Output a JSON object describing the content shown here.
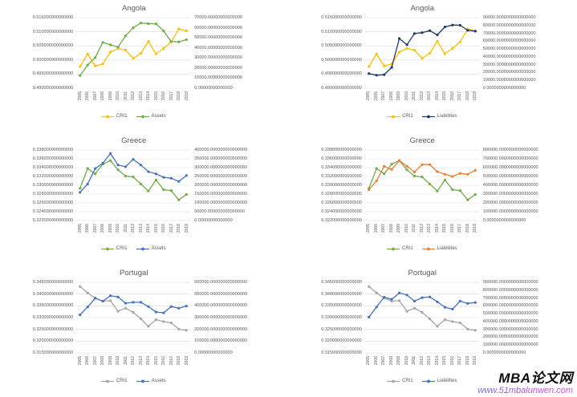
{
  "watermark": {
    "brand": "MBA论文网",
    "url": "www.51mbalunwen.com"
  },
  "colors": {
    "gold": "#FFC000",
    "green": "#70AD47",
    "navy": "#203864",
    "blue": "#4472C4",
    "orange": "#ED7D31",
    "gray": "#A5A5A5",
    "grid": "#D9D9D9",
    "text": "#595959",
    "watermark_brand": "#0D0D0D",
    "watermark_url_start": "#6F6FD8",
    "watermark_url_end": "#E04FC8"
  },
  "years": [
    "2005",
    "2006",
    "2007",
    "2008",
    "2009",
    "2010",
    "2011",
    "2012",
    "2013",
    "2014",
    "2015",
    "2016",
    "2017",
    "2018",
    "2019"
  ],
  "chart_data": [
    {
      "type": "line",
      "title": "Angola",
      "grid": "horizontal",
      "legend_position": "bottom",
      "x": [
        "2005",
        "2006",
        "2007",
        "2008",
        "2009",
        "2010",
        "2011",
        "2012",
        "2013",
        "2014",
        "2015",
        "2016",
        "2017",
        "2018",
        "2019"
      ],
      "left_axis": {
        "min": 0.49,
        "max": 0.515,
        "labels": [
          "0.515000000000000",
          "0.510000000000000",
          "0.505000000000000",
          "0.500000000000000",
          "0.495000000000000",
          "0.490000000000000"
        ]
      },
      "right_axis": {
        "min": 0,
        "max": 70000,
        "labels": [
          "70000.00000000000000",
          "60000.00000000000000",
          "50000.00000000000000",
          "40000.00000000000000",
          "30000.00000000000000",
          "20000.00000000000000",
          "10000.00000000000000",
          "0.00000000000000"
        ]
      },
      "series": [
        {
          "name": "CRI1",
          "color": "#FFC000",
          "axis": "left",
          "values": [
            0.4977,
            0.5021,
            0.4979,
            0.4986,
            0.5028,
            0.5041,
            0.5035,
            0.5006,
            0.5024,
            0.5066,
            0.5022,
            0.5041,
            0.5064,
            0.511,
            0.5103
          ]
        },
        {
          "name": "Assets",
          "color": "#70AD47",
          "axis": "right",
          "values": [
            12500,
            23000,
            30500,
            45500,
            43000,
            40800,
            52000,
            60000,
            64700,
            64000,
            63900,
            56800,
            46300,
            46000,
            48200
          ]
        }
      ]
    },
    {
      "type": "line",
      "title": "Angola",
      "grid": "horizontal",
      "legend_position": "bottom",
      "x": [
        "2005",
        "2006",
        "2007",
        "2008",
        "2009",
        "2010",
        "2011",
        "2012",
        "2013",
        "2014",
        "2015",
        "2016",
        "2017",
        "2018",
        "2019"
      ],
      "left_axis": {
        "min": 0.49,
        "max": 0.515,
        "labels": [
          "0.515000000000000",
          "0.510000000000000",
          "0.505000000000000",
          "0.500000000000000",
          "0.495000000000000",
          "0.490000000000000"
        ]
      },
      "right_axis": {
        "min": 0,
        "max": 90000,
        "labels": [
          "90000.0000000000000000",
          "80000.0000000000000000",
          "70000.0000000000000000",
          "60000.0000000000000000",
          "50000.0000000000000000",
          "40000.0000000000000000",
          "30000.0000000000000000",
          "20000.0000000000000000",
          "10000.0000000000000000",
          "0.0000000000000000"
        ]
      },
      "series": [
        {
          "name": "CRI1",
          "color": "#FFC000",
          "axis": "left",
          "values": [
            0.4977,
            0.5021,
            0.4979,
            0.4986,
            0.5028,
            0.5041,
            0.5035,
            0.5006,
            0.5024,
            0.5066,
            0.5022,
            0.5041,
            0.5064,
            0.511,
            0.5103
          ]
        },
        {
          "name": "Liabilities",
          "color": "#203864",
          "axis": "right",
          "values": [
            18700,
            16600,
            17300,
            26600,
            63400,
            55400,
            69800,
            70900,
            73400,
            68000,
            78100,
            80600,
            80300,
            73800,
            72700
          ]
        }
      ]
    },
    {
      "type": "line",
      "title": "Greece",
      "grid": "horizontal",
      "legend_position": "bottom",
      "x": [
        "2005",
        "2006",
        "2007",
        "2008",
        "2009",
        "2010",
        "2011",
        "2012",
        "2013",
        "2014",
        "2015",
        "2016",
        "2017",
        "2018",
        "2019"
      ],
      "left_axis": {
        "min": 0.322,
        "max": 0.338,
        "labels": [
          "0.338000000000000",
          "0.336000000000000",
          "0.334000000000000",
          "0.332000000000000",
          "0.330000000000000",
          "0.328000000000000",
          "0.326000000000000",
          "0.324000000000000",
          "0.322000000000000"
        ]
      },
      "right_axis": {
        "min": 0,
        "max": 400000,
        "labels": [
          "400000.000000000000000",
          "350000.000000000000000",
          "300000.000000000000000",
          "250000.000000000000000",
          "200000.000000000000000",
          "150000.000000000000000",
          "100000.000000000000000",
          "50000.000000000000000",
          "0.00000000000000"
        ]
      },
      "series": [
        {
          "name": "CRI1",
          "color": "#70AD47",
          "axis": "left",
          "values": [
            0.3293,
            0.3338,
            0.3326,
            0.3348,
            0.3356,
            0.3335,
            0.3321,
            0.3319,
            0.3303,
            0.3287,
            0.3312,
            0.329,
            0.3288,
            0.3267,
            0.3279
          ]
        },
        {
          "name": "Assets",
          "color": "#4472C4",
          "axis": "right",
          "values": [
            160000,
            207000,
            295000,
            325000,
            380000,
            315000,
            305000,
            347000,
            315000,
            277000,
            265000,
            245000,
            240000,
            222000,
            255000
          ]
        }
      ]
    },
    {
      "type": "line",
      "title": "Greece",
      "grid": "horizontal",
      "legend_position": "bottom",
      "x": [
        "2005",
        "2006",
        "2007",
        "2008",
        "2009",
        "2010",
        "2011",
        "2012",
        "2013",
        "2014",
        "2015",
        "2016",
        "2017",
        "2018",
        "2019"
      ],
      "left_axis": {
        "min": 0.322,
        "max": 0.338,
        "labels": [
          "0.338000000000000",
          "0.336000000000000",
          "0.334000000000000",
          "0.332000000000000",
          "0.330000000000000",
          "0.328000000000000",
          "0.326000000000000",
          "0.324000000000000",
          "0.322000000000000"
        ]
      },
      "right_axis": {
        "min": 0,
        "max": 800000,
        "labels": [
          "800000.0000000000000000",
          "700000.0000000000000000",
          "600000.0000000000000000",
          "500000.0000000000000000",
          "400000.0000000000000000",
          "300000.0000000000000000",
          "200000.0000000000000000",
          "100000.0000000000000000",
          "0.0000000000000000"
        ]
      },
      "series": [
        {
          "name": "CRI1",
          "color": "#70AD47",
          "axis": "left",
          "values": [
            0.3293,
            0.3338,
            0.3326,
            0.3348,
            0.3356,
            0.3335,
            0.3321,
            0.3319,
            0.3303,
            0.3287,
            0.3312,
            0.329,
            0.3288,
            0.3267,
            0.3279
          ]
        },
        {
          "name": "Liabilities",
          "color": "#ED7D31",
          "axis": "right",
          "values": [
            350000,
            450000,
            615000,
            580000,
            680000,
            615000,
            550000,
            635000,
            635000,
            555000,
            525000,
            500000,
            535000,
            525000,
            570000
          ]
        }
      ]
    },
    {
      "type": "line",
      "title": "Portugal",
      "grid": "horizontal",
      "legend_position": "bottom",
      "x": [
        "2005",
        "2006",
        "2007",
        "2008",
        "2009",
        "2010",
        "2011",
        "2012",
        "2013",
        "2014",
        "2015",
        "2016",
        "2017",
        "2018",
        "2019"
      ],
      "left_axis": {
        "min": 0.315,
        "max": 0.345,
        "labels": [
          "0.345000000000000",
          "0.340000000000000",
          "0.335000000000000",
          "0.330000000000000",
          "0.325000000000000",
          "0.320000000000000",
          "0.315000000000000"
        ]
      },
      "right_axis": {
        "min": 0,
        "max": 600000,
        "labels": [
          "600000.000000000000000",
          "500000.000000000000000",
          "400000.000000000000000",
          "300000.000000000000000",
          "200000.000000000000000",
          "100000.000000000000000",
          "0.00000000000000"
        ]
      },
      "series": [
        {
          "name": "CRI1",
          "color": "#A5A5A5",
          "axis": "left",
          "values": [
            0.3432,
            0.3405,
            0.3382,
            0.337,
            0.3372,
            0.3327,
            0.334,
            0.3322,
            0.3295,
            0.3263,
            0.3291,
            0.3283,
            0.3278,
            0.3251,
            0.3246
          ]
        },
        {
          "name": "Assets",
          "color": "#4472C4",
          "axis": "right",
          "values": [
            324000,
            390000,
            466000,
            440000,
            486000,
            476000,
            422000,
            430000,
            430000,
            394000,
            348000,
            340000,
            394000,
            380000,
            398000
          ]
        }
      ]
    },
    {
      "type": "line",
      "title": "Portugal",
      "grid": "horizontal",
      "legend_position": "bottom",
      "x": [
        "2005",
        "2006",
        "2007",
        "2008",
        "2009",
        "2010",
        "2011",
        "2012",
        "2013",
        "2014",
        "2015",
        "2016",
        "2017",
        "2018",
        "2019"
      ],
      "left_axis": {
        "min": 0.315,
        "max": 0.345,
        "labels": [
          "0.345000000000000",
          "0.340000000000000",
          "0.335000000000000",
          "0.330000000000000",
          "0.325000000000000",
          "0.320000000000000",
          "0.315000000000000"
        ]
      },
      "right_axis": {
        "min": 0,
        "max": 900000,
        "labels": [
          "900000.0000000000000000",
          "800000.0000000000000000",
          "700000.0000000000000000",
          "600000.0000000000000000",
          "500000.0000000000000000",
          "400000.0000000000000000",
          "300000.0000000000000000",
          "200000.0000000000000000",
          "100000.0000000000000000",
          "0.0000000000000000"
        ]
      },
      "series": [
        {
          "name": "CRI1",
          "color": "#A5A5A5",
          "axis": "left",
          "values": [
            0.3432,
            0.3405,
            0.3382,
            0.337,
            0.3372,
            0.3327,
            0.334,
            0.3322,
            0.3295,
            0.3263,
            0.3291,
            0.3283,
            0.3278,
            0.3251,
            0.3246
          ]
        },
        {
          "name": "Liabilities",
          "color": "#4472C4",
          "axis": "right",
          "values": [
            456000,
            585000,
            711000,
            684000,
            765000,
            738000,
            660000,
            705000,
            714000,
            651000,
            582000,
            558000,
            660000,
            630000,
            642000
          ]
        }
      ]
    }
  ]
}
